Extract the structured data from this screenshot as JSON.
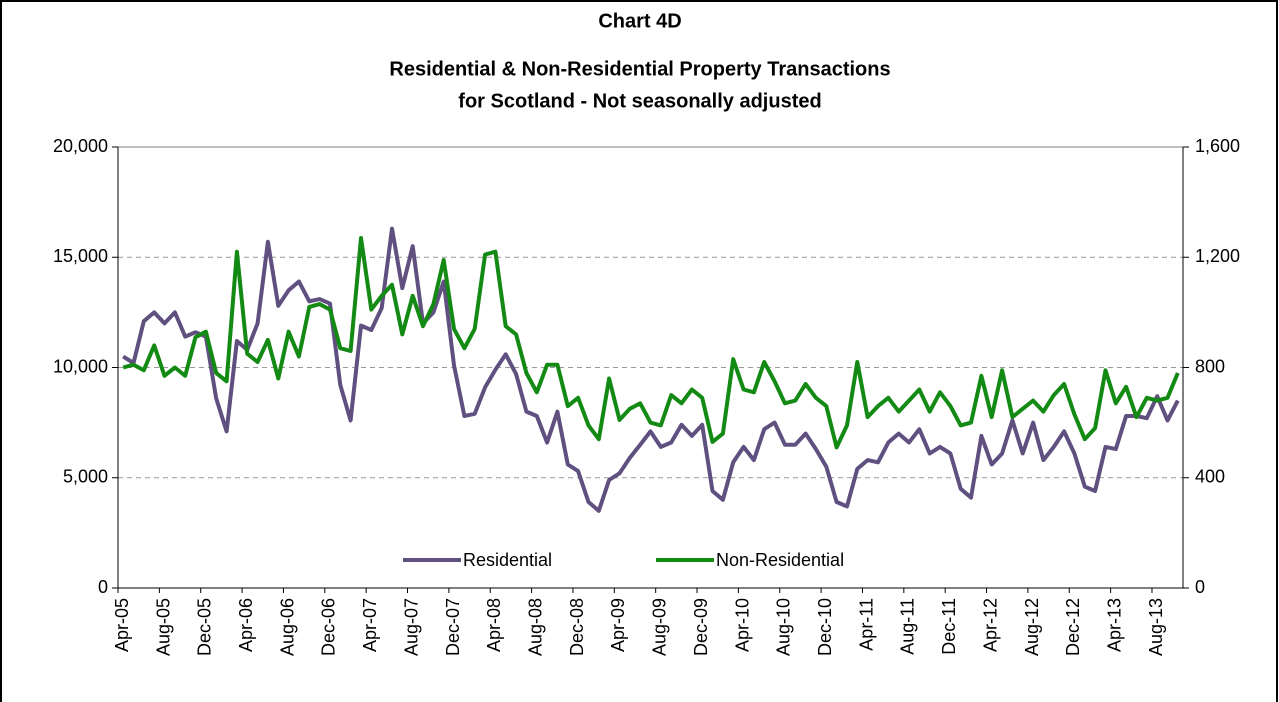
{
  "chart_data": {
    "type": "line",
    "title": "Chart 4D",
    "subtitle": [
      "Residential & Non-Residential Property Transactions",
      "for Scotland - Not seasonally adjusted"
    ],
    "categories": [
      "Apr-05",
      null,
      null,
      null,
      "Aug-05",
      null,
      null,
      null,
      "Dec-05",
      null,
      null,
      null,
      "Apr-06",
      null,
      null,
      null,
      "Aug-06",
      null,
      null,
      null,
      "Dec-06",
      null,
      null,
      null,
      "Apr-07",
      null,
      null,
      null,
      "Aug-07",
      null,
      null,
      null,
      "Dec-07",
      null,
      null,
      null,
      "Apr-08",
      null,
      null,
      null,
      "Aug-08",
      null,
      null,
      null,
      "Dec-08",
      null,
      null,
      null,
      "Apr-09",
      null,
      null,
      null,
      "Aug-09",
      null,
      null,
      null,
      "Dec-09",
      null,
      null,
      null,
      "Apr-10",
      null,
      null,
      null,
      "Aug-10",
      null,
      null,
      null,
      "Dec-10",
      null,
      null,
      null,
      "Apr-11",
      null,
      null,
      null,
      "Aug-11",
      null,
      null,
      null,
      "Dec-11",
      null,
      null,
      null,
      "Apr-12",
      null,
      null,
      null,
      "Aug-12",
      null,
      null,
      null,
      "Dec-12",
      null,
      null,
      null,
      "Apr-13",
      null,
      null,
      null,
      "Aug-13",
      null,
      null
    ],
    "series": [
      {
        "name": "Residential",
        "color": "#5f5080",
        "axis": "y",
        "values": [
          10500,
          10200,
          12100,
          12500,
          12000,
          12500,
          11400,
          11600,
          11400,
          8600,
          7100,
          11200,
          10800,
          12000,
          15700,
          12800,
          13500,
          13900,
          13000,
          13100,
          12900,
          9200,
          7600,
          11900,
          11700,
          12700,
          16300,
          13600,
          15500,
          12000,
          12500,
          13900,
          10100,
          7800,
          7900,
          9100,
          9900,
          10600,
          9700,
          8000,
          7800,
          6600,
          8000,
          5600,
          5300,
          3900,
          3500,
          4900,
          5200,
          5900,
          6500,
          7100,
          6400,
          6600,
          7400,
          6900,
          7400,
          4400,
          4000,
          5700,
          6400,
          5800,
          7200,
          7500,
          6500,
          6500,
          7000,
          6300,
          5500,
          3900,
          3700,
          5400,
          5800,
          5700,
          6600,
          7000,
          6600,
          7200,
          6100,
          6400,
          6100,
          4500,
          4100,
          6900,
          5600,
          6100,
          7600,
          6100,
          7500,
          5800,
          6400,
          7100,
          6100,
          4600,
          4400,
          6400,
          6300,
          7800,
          7800,
          7700,
          8700,
          7600,
          8500
        ]
      },
      {
        "name": "Non-Residential",
        "color": "#138a13",
        "axis": "y2",
        "values": [
          800,
          810,
          790,
          880,
          770,
          800,
          770,
          910,
          930,
          780,
          750,
          1220,
          850,
          820,
          900,
          760,
          930,
          840,
          1020,
          1030,
          1010,
          870,
          860,
          1270,
          1010,
          1060,
          1100,
          920,
          1060,
          950,
          1030,
          1190,
          940,
          870,
          940,
          1210,
          1220,
          950,
          920,
          780,
          710,
          810,
          810,
          660,
          690,
          590,
          540,
          760,
          610,
          650,
          670,
          600,
          590,
          700,
          670,
          720,
          690,
          530,
          560,
          830,
          720,
          710,
          820,
          750,
          670,
          680,
          740,
          690,
          660,
          510,
          590,
          820,
          620,
          660,
          690,
          640,
          680,
          720,
          640,
          710,
          660,
          590,
          600,
          770,
          620,
          790,
          620,
          650,
          680,
          640,
          700,
          740,
          630,
          540,
          580,
          790,
          670,
          730,
          620,
          690,
          680,
          690,
          780
        ]
      }
    ],
    "ylim": [
      0,
      20000
    ],
    "yticks": [
      0,
      {
        "value": 5000,
        "label": "5,000"
      },
      {
        "value": 10000,
        "label": "10,000"
      },
      {
        "value": 15000,
        "label": "15,000"
      },
      {
        "value": 20000,
        "label": "20,000"
      }
    ],
    "y2lim": [
      0,
      1600
    ],
    "y2ticks": [
      0,
      400,
      800,
      {
        "value": 1200,
        "label": "1,200"
      },
      {
        "value": 1600,
        "label": "1,600"
      }
    ],
    "grid": true,
    "legend": "bottom"
  }
}
